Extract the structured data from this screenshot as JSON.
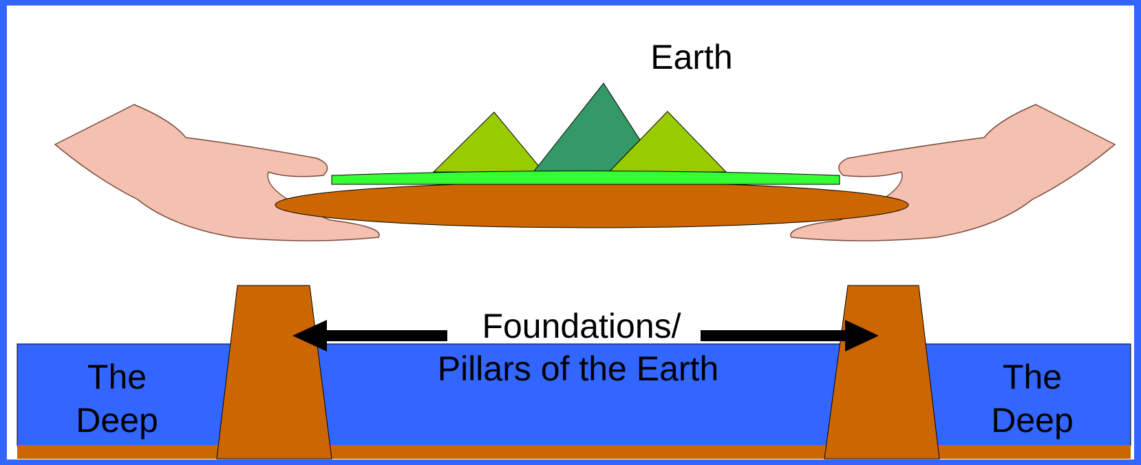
{
  "labels": {
    "earth": "Earth",
    "foundations": [
      "Foundations/",
      "Pillars of the Earth"
    ],
    "deep_left": [
      "The",
      "Deep"
    ],
    "deep_right": [
      "The",
      "Deep"
    ]
  }
}
